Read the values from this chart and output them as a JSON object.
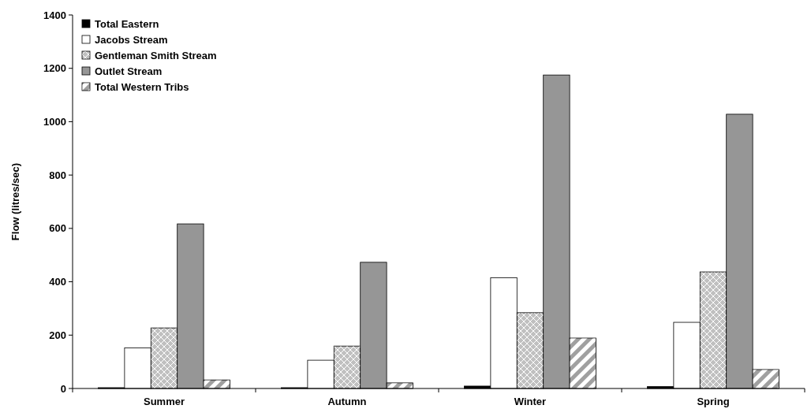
{
  "chart_data": {
    "type": "bar",
    "ylabel": "Flow (litres/sec)",
    "categories": [
      "Summer",
      "Autumn",
      "Winter",
      "Spring"
    ],
    "series": [
      {
        "name": "Total Eastern",
        "color": "#000000",
        "values": [
          3,
          3,
          9,
          7
        ]
      },
      {
        "name": "Jacobs Stream",
        "color": "#ffffff",
        "values": [
          152,
          106,
          415,
          248
        ]
      },
      {
        "name": "Gentleman Smith Stream",
        "color": "#c0c0c0",
        "values": [
          227,
          159,
          284,
          437
        ]
      },
      {
        "name": "Outlet Stream",
        "color": "#969696",
        "values": [
          617,
          473,
          1175,
          1028
        ]
      },
      {
        "name": "Total Western Tribs",
        "color": "#a0a0a0",
        "values": [
          32,
          21,
          189,
          71
        ]
      }
    ],
    "ylim": [
      0,
      1400
    ],
    "yticks": [
      0,
      200,
      400,
      600,
      800,
      1000,
      1200,
      1400
    ],
    "grid": false,
    "legend": "top left"
  }
}
